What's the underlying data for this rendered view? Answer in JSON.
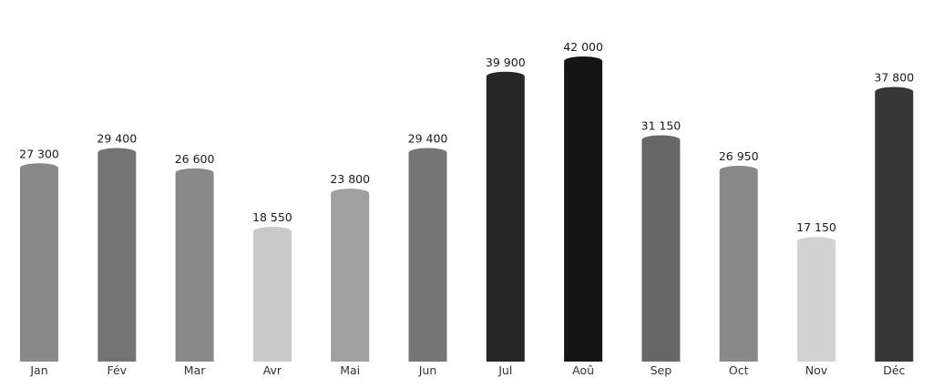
{
  "chart_data": {
    "type": "bar",
    "title": "",
    "xlabel": "",
    "ylabel": "",
    "categories": [
      "Jan",
      "Fév",
      "Mar",
      "Avr",
      "Mai",
      "Jun",
      "Jul",
      "Aoû",
      "Sep",
      "Oct",
      "Nov",
      "Déc"
    ],
    "values": [
      27300,
      29400,
      26600,
      18550,
      23800,
      29400,
      39900,
      42000,
      31150,
      26950,
      17150,
      37800
    ],
    "value_labels": [
      "27 300",
      "29 400",
      "26 600",
      "18 550",
      "23 800",
      "29 400",
      "39 900",
      "42 000",
      "31 150",
      "26 950",
      "17 150",
      "37 800"
    ],
    "bar_colors": [
      "#888888",
      "#747474",
      "#898989",
      "#c9c9c9",
      "#a0a0a0",
      "#757575",
      "#262626",
      "#151515",
      "#676767",
      "#888888",
      "#d2d2d2",
      "#373737"
    ],
    "ylim": [
      0,
      42000
    ],
    "grid": false,
    "legend": "none",
    "bar_shape": "cylinder"
  }
}
